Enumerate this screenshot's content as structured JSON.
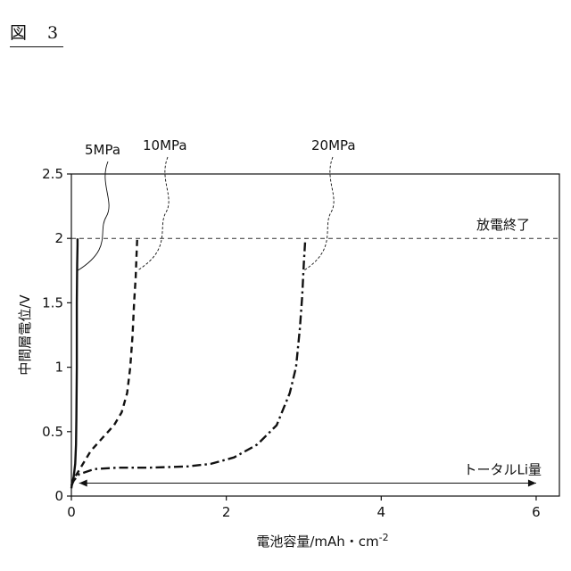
{
  "figure_label": "図　3",
  "chart_data": {
    "type": "line",
    "xlabel": "電池容量/mAh・cm",
    "xlabel_sup": "-2",
    "ylabel": "中間層電位/V",
    "xlim": [
      0,
      6.3
    ],
    "ylim": [
      0,
      2.5
    ],
    "xticks": [
      0,
      2,
      4,
      6
    ],
    "xtick_labels": [
      "0",
      "2",
      "4",
      "6"
    ],
    "yticks": [
      0,
      0.5,
      1,
      1.5,
      2,
      2.5
    ],
    "ytick_labels": [
      "0",
      "0.5",
      "1",
      "1.5",
      "2",
      "2.5"
    ],
    "grid": false,
    "series": [
      {
        "name": "5MPa",
        "style": "solid",
        "x": [
          0,
          0.01,
          0.03,
          0.05,
          0.06,
          0.065,
          0.07,
          0.07,
          0.075,
          0.08,
          0.08
        ],
        "y": [
          0.06,
          0.1,
          0.15,
          0.25,
          0.4,
          0.6,
          1.0,
          1.5,
          1.8,
          1.95,
          2.0
        ]
      },
      {
        "name": "10MPa",
        "style": "dashed",
        "x": [
          0,
          0.05,
          0.12,
          0.25,
          0.4,
          0.55,
          0.65,
          0.72,
          0.76,
          0.79,
          0.81,
          0.83,
          0.84,
          0.85
        ],
        "y": [
          0.08,
          0.15,
          0.22,
          0.35,
          0.45,
          0.55,
          0.65,
          0.8,
          1.0,
          1.25,
          1.5,
          1.7,
          1.85,
          2.0
        ]
      },
      {
        "name": "20MPa",
        "style": "dashdot",
        "x": [
          0,
          0.03,
          0.1,
          0.3,
          0.6,
          1.0,
          1.5,
          1.8,
          2.1,
          2.4,
          2.65,
          2.82,
          2.9,
          2.95,
          2.98,
          3.0,
          3.02
        ],
        "y": [
          0.08,
          0.12,
          0.17,
          0.21,
          0.22,
          0.22,
          0.23,
          0.25,
          0.3,
          0.4,
          0.55,
          0.8,
          1.0,
          1.3,
          1.55,
          1.8,
          2.0
        ]
      }
    ],
    "cutoff_line": {
      "y": 2.0,
      "label": "放電終了"
    },
    "total_li": {
      "x_start": 0.1,
      "x_end": 6.0,
      "y": 0.1,
      "label": "トータルLi量"
    },
    "series_labels": [
      {
        "text": "5MPa",
        "point_x": 0.08,
        "point_y": 1.75
      },
      {
        "text": "10MPa",
        "point_x": 0.85,
        "point_y": 1.75
      },
      {
        "text": "20MPa",
        "point_x": 3.0,
        "point_y": 1.75
      }
    ]
  }
}
